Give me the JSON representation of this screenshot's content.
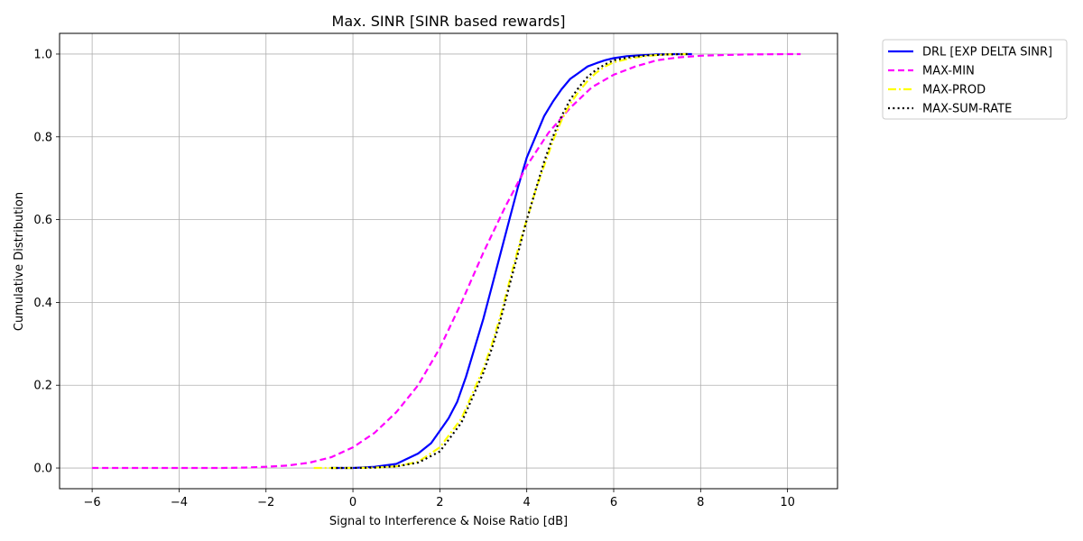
{
  "chart_data": {
    "type": "line",
    "title": "Max. SINR [SINR based rewards]",
    "xlabel": "Signal to Interference & Noise Ratio [dB]",
    "ylabel": "Cumulative Distribution",
    "xlim": [
      -6.75,
      11.15
    ],
    "ylim": [
      -0.05,
      1.05
    ],
    "xticks": [
      -6,
      -4,
      -2,
      0,
      2,
      4,
      6,
      8,
      10
    ],
    "xtick_labels": [
      "−6",
      "−4",
      "−2",
      "0",
      "2",
      "4",
      "6",
      "8",
      "10"
    ],
    "yticks": [
      0.0,
      0.2,
      0.4,
      0.6,
      0.8,
      1.0
    ],
    "ytick_labels": [
      "0.0",
      "0.2",
      "0.4",
      "0.6",
      "0.8",
      "1.0"
    ],
    "grid": true,
    "legend_position": "outside-top-right",
    "series": [
      {
        "name": "DRL [EXP DELTA SINR]",
        "color": "#0000ff",
        "style": "solid",
        "x": [
          -0.5,
          0.0,
          0.5,
          1.0,
          1.2,
          1.5,
          1.8,
          2.0,
          2.2,
          2.4,
          2.6,
          2.8,
          3.0,
          3.2,
          3.4,
          3.6,
          3.8,
          4.0,
          4.2,
          4.4,
          4.6,
          4.8,
          5.0,
          5.2,
          5.4,
          5.6,
          5.8,
          6.0,
          6.3,
          6.6,
          7.0,
          7.4,
          7.8
        ],
        "y": [
          0.0,
          0.0,
          0.003,
          0.01,
          0.02,
          0.035,
          0.06,
          0.09,
          0.12,
          0.16,
          0.22,
          0.29,
          0.36,
          0.44,
          0.52,
          0.6,
          0.68,
          0.75,
          0.8,
          0.85,
          0.885,
          0.915,
          0.94,
          0.955,
          0.97,
          0.978,
          0.985,
          0.99,
          0.995,
          0.997,
          0.999,
          1.0,
          1.0
        ]
      },
      {
        "name": "MAX-MIN",
        "color": "#ff00ff",
        "style": "dashed",
        "x": [
          -6.0,
          -5.0,
          -4.0,
          -3.0,
          -2.5,
          -2.0,
          -1.5,
          -1.0,
          -0.5,
          0.0,
          0.5,
          1.0,
          1.5,
          2.0,
          2.5,
          3.0,
          3.5,
          4.0,
          4.5,
          5.0,
          5.5,
          6.0,
          6.5,
          7.0,
          7.5,
          8.0,
          9.0,
          10.0,
          10.3
        ],
        "y": [
          0.0,
          0.0,
          0.0,
          0.0,
          0.001,
          0.003,
          0.006,
          0.013,
          0.026,
          0.05,
          0.085,
          0.135,
          0.2,
          0.29,
          0.4,
          0.52,
          0.63,
          0.73,
          0.81,
          0.87,
          0.92,
          0.95,
          0.97,
          0.985,
          0.992,
          0.996,
          0.999,
          1.0,
          1.0
        ]
      },
      {
        "name": "MAX-PROD",
        "color": "#ffff00",
        "style": "dashdot",
        "x": [
          -0.9,
          -0.5,
          0.0,
          0.5,
          1.0,
          1.5,
          2.0,
          2.5,
          3.0,
          3.2,
          3.4,
          3.6,
          3.8,
          4.0,
          4.2,
          4.4,
          4.6,
          4.8,
          5.0,
          5.2,
          5.4,
          5.6,
          5.8,
          6.0,
          6.4,
          6.8,
          7.2,
          7.7
        ],
        "y": [
          0.0,
          0.0,
          0.0,
          0.001,
          0.004,
          0.015,
          0.05,
          0.12,
          0.24,
          0.3,
          0.37,
          0.45,
          0.53,
          0.6,
          0.67,
          0.73,
          0.79,
          0.84,
          0.88,
          0.91,
          0.935,
          0.955,
          0.97,
          0.98,
          0.99,
          0.996,
          0.999,
          1.0
        ]
      },
      {
        "name": "MAX-SUM-RATE",
        "color": "#000000",
        "style": "dotted",
        "x": [
          -0.5,
          0.0,
          0.5,
          1.0,
          1.5,
          2.0,
          2.5,
          3.0,
          3.2,
          3.4,
          3.6,
          3.8,
          4.0,
          4.2,
          4.4,
          4.6,
          4.8,
          5.0,
          5.2,
          5.4,
          5.6,
          5.8,
          6.0,
          6.4,
          6.8,
          7.2,
          7.7
        ],
        "y": [
          0.0,
          0.0,
          0.001,
          0.004,
          0.013,
          0.04,
          0.11,
          0.23,
          0.29,
          0.36,
          0.44,
          0.52,
          0.6,
          0.67,
          0.74,
          0.8,
          0.85,
          0.89,
          0.92,
          0.945,
          0.962,
          0.975,
          0.985,
          0.993,
          0.997,
          0.999,
          1.0
        ]
      }
    ]
  }
}
